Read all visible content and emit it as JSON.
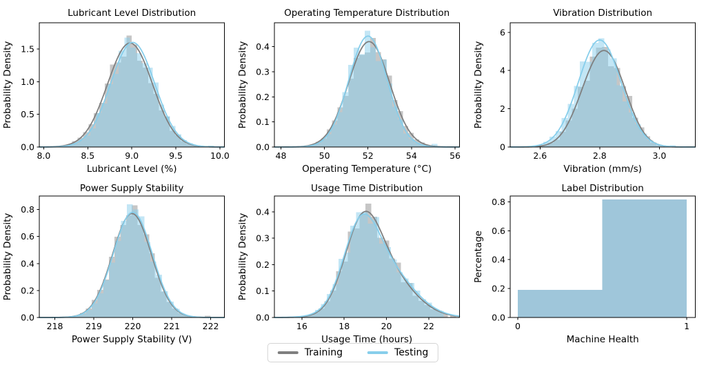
{
  "figure": {
    "background": "#ffffff",
    "legend": {
      "items": [
        {
          "label": "Training",
          "color": "#7f7f7f"
        },
        {
          "label": "Testing",
          "color": "#87ceeb"
        }
      ]
    }
  },
  "colors": {
    "training_line": "#7f7f7f",
    "testing_line": "#87ceeb",
    "training_fill": "rgba(128,128,128,0.45)",
    "testing_fill": "rgba(135,206,235,0.5)",
    "label_bar_fill": "#9fc6da",
    "spine": "#000000",
    "tick": "#000000",
    "text": "#000000"
  },
  "chart_data": [
    {
      "id": "lubricant-level",
      "type": "histogram-kde",
      "title": "Lubricant Level Distribution",
      "xlabel": "Lubricant Level (%)",
      "ylabel": "Probability Density",
      "xlim": [
        7.95,
        10.05
      ],
      "ylim": [
        0,
        1.9
      ],
      "xticks": [
        {
          "v": 8.0,
          "label": "8.0"
        },
        {
          "v": 8.5,
          "label": "8.5"
        },
        {
          "v": 9.0,
          "label": "9.0"
        },
        {
          "v": 9.5,
          "label": "9.5"
        },
        {
          "v": 10.0,
          "label": "10.0"
        }
      ],
      "yticks": [
        {
          "v": 0.0,
          "label": "0.0"
        },
        {
          "v": 0.5,
          "label": "0.5"
        },
        {
          "v": 1.0,
          "label": "1.0"
        },
        {
          "v": 1.5,
          "label": "1.5"
        }
      ],
      "legend_on": false,
      "series": [
        {
          "name": "Training",
          "key": "training",
          "kde": {
            "components": [
              {
                "mean": 8.98,
                "sd": 0.255,
                "w": 1
              }
            ],
            "peak": 1.59
          },
          "hist": {
            "range": [
              8.2,
              9.8
            ],
            "bins": 26,
            "seed": 7,
            "jitter": 0.14,
            "extra_bars": []
          }
        },
        {
          "name": "Testing",
          "key": "testing",
          "kde": {
            "components": [
              {
                "mean": 9.01,
                "sd": 0.25,
                "w": 1
              }
            ],
            "peak": 1.6
          },
          "hist": {
            "range": [
              8.27,
              9.82
            ],
            "bins": 24,
            "seed": 17,
            "jitter": 0.13,
            "extra_bars": [
              {
                "x": 9.9,
                "w": 0.065,
                "h": 0.02
              }
            ]
          }
        }
      ]
    },
    {
      "id": "operating-temperature",
      "type": "histogram-kde",
      "title": "Operating Temperature Distribution",
      "xlabel": "Operating Temperature (°C)",
      "ylabel": "Probability Density",
      "xlim": [
        47.7,
        56.2
      ],
      "ylim": [
        0,
        0.495
      ],
      "xticks": [
        {
          "v": 48,
          "label": "48"
        },
        {
          "v": 50,
          "label": "50"
        },
        {
          "v": 52,
          "label": "52"
        },
        {
          "v": 54,
          "label": "54"
        },
        {
          "v": 56,
          "label": "56"
        }
      ],
      "yticks": [
        {
          "v": 0.0,
          "label": "0.0"
        },
        {
          "v": 0.1,
          "label": "0.1"
        },
        {
          "v": 0.2,
          "label": "0.2"
        },
        {
          "v": 0.3,
          "label": "0.3"
        },
        {
          "v": 0.4,
          "label": "0.4"
        }
      ],
      "legend_on": false,
      "series": [
        {
          "name": "Training",
          "key": "training",
          "kde": {
            "components": [
              {
                "mean": 52.05,
                "sd": 0.95,
                "w": 1
              }
            ],
            "peak": 0.42
          },
          "hist": {
            "range": [
              49.1,
              55.1
            ],
            "bins": 24,
            "seed": 3,
            "jitter": 0.12,
            "extra_bars": []
          }
        },
        {
          "name": "Testing",
          "key": "testing",
          "kde": {
            "components": [
              {
                "mean": 52.0,
                "sd": 0.88,
                "w": 1
              }
            ],
            "peak": 0.442
          },
          "hist": {
            "range": [
              49.3,
              54.9
            ],
            "bins": 22,
            "seed": 23,
            "jitter": 0.12,
            "extra_bars": [
              {
                "x": 55.05,
                "w": 0.27,
                "h": 0.012
              }
            ]
          }
        }
      ]
    },
    {
      "id": "vibration",
      "type": "histogram-kde",
      "title": "Vibration Distribution",
      "xlabel": "Vibration (mm/s)",
      "ylabel": "Probability Density",
      "xlim": [
        2.5,
        3.12
      ],
      "ylim": [
        0,
        6.5
      ],
      "xticks": [
        {
          "v": 2.6,
          "label": "2.6"
        },
        {
          "v": 2.8,
          "label": "2.8"
        },
        {
          "v": 3.0,
          "label": "3.0"
        }
      ],
      "yticks": [
        {
          "v": 0,
          "label": "0"
        },
        {
          "v": 2,
          "label": "2"
        },
        {
          "v": 4,
          "label": "4"
        },
        {
          "v": 6,
          "label": "6"
        }
      ],
      "legend_on": false,
      "series": [
        {
          "name": "Training",
          "key": "training",
          "kde": {
            "components": [
              {
                "mean": 2.782,
                "sd": 0.063,
                "w": 0.52
              },
              {
                "mean": 2.846,
                "sd": 0.06,
                "w": 0.48
              }
            ],
            "peak": 5.05
          },
          "hist": {
            "range": [
              2.565,
              3.03
            ],
            "bins": 23,
            "seed": 5,
            "jitter": 0.12,
            "extra_bars": []
          }
        },
        {
          "name": "Testing",
          "key": "testing",
          "kde": {
            "components": [
              {
                "mean": 2.8,
                "sd": 0.0715,
                "w": 1
              }
            ],
            "peak": 5.6
          },
          "hist": {
            "range": [
              2.55,
              3.02
            ],
            "bins": 23,
            "seed": 19,
            "jitter": 0.13,
            "extra_bars": [
              {
                "x": 3.045,
                "w": 0.02,
                "h": 0.09
              }
            ]
          }
        }
      ]
    },
    {
      "id": "power-supply",
      "type": "histogram-kde",
      "title": "Power Supply Stability",
      "xlabel": "Power Supply Stability (V)",
      "ylabel": "Probability Density",
      "xlim": [
        217.6,
        222.35
      ],
      "ylim": [
        0,
        0.9
      ],
      "xticks": [
        {
          "v": 218,
          "label": "218"
        },
        {
          "v": 219,
          "label": "219"
        },
        {
          "v": 220,
          "label": "220"
        },
        {
          "v": 221,
          "label": "221"
        },
        {
          "v": 222,
          "label": "222"
        }
      ],
      "yticks": [
        {
          "v": 0.0,
          "label": "0.0"
        },
        {
          "v": 0.2,
          "label": "0.2"
        },
        {
          "v": 0.4,
          "label": "0.4"
        },
        {
          "v": 0.6,
          "label": "0.6"
        },
        {
          "v": 0.8,
          "label": "0.8"
        }
      ],
      "legend_on": false,
      "series": [
        {
          "name": "Training",
          "key": "training",
          "kde": {
            "components": [
              {
                "mean": 219.98,
                "sd": 0.5,
                "w": 1
              }
            ],
            "peak": 0.77
          },
          "hist": {
            "range": [
              218.35,
              221.75
            ],
            "bins": 23,
            "seed": 11,
            "jitter": 0.13,
            "extra_bars": [
              {
                "x": 221.92,
                "w": 0.15,
                "h": 0.012
              }
            ]
          }
        },
        {
          "name": "Testing",
          "key": "testing",
          "kde": {
            "components": [
              {
                "mean": 220.0,
                "sd": 0.5,
                "w": 1
              }
            ],
            "peak": 0.78
          },
          "hist": {
            "range": [
              218.5,
              221.65
            ],
            "bins": 21,
            "seed": 13,
            "jitter": 0.12,
            "extra_bars": []
          }
        }
      ]
    },
    {
      "id": "usage-time",
      "type": "histogram-kde",
      "title": "Usage Time Distribution",
      "xlabel": "Usage Time (hours)",
      "ylabel": "Probability Density",
      "xlim": [
        14.7,
        23.45
      ],
      "ylim": [
        0,
        0.46
      ],
      "xticks": [
        {
          "v": 16,
          "label": "16"
        },
        {
          "v": 18,
          "label": "18"
        },
        {
          "v": 20,
          "label": "20"
        },
        {
          "v": 22,
          "label": "22"
        }
      ],
      "yticks": [
        {
          "v": 0.0,
          "label": "0.0"
        },
        {
          "v": 0.1,
          "label": "0.1"
        },
        {
          "v": 0.2,
          "label": "0.2"
        },
        {
          "v": 0.3,
          "label": "0.3"
        },
        {
          "v": 0.4,
          "label": "0.4"
        }
      ],
      "legend_on": true,
      "series": [
        {
          "name": "Training",
          "key": "training",
          "kde": {
            "components": [
              {
                "mean": 18.85,
                "sd": 0.85,
                "w": 0.62
              },
              {
                "mean": 19.9,
                "sd": 1.3,
                "w": 0.38
              }
            ],
            "peak": 0.402
          },
          "hist": {
            "range": [
              15.4,
              22.9
            ],
            "bins": 27,
            "seed": 2,
            "jitter": 0.12,
            "extra_bars": [
              {
                "x": 23.15,
                "w": 0.28,
                "h": 0.008
              }
            ]
          }
        },
        {
          "name": "Testing",
          "key": "testing",
          "kde": {
            "components": [
              {
                "mean": 18.75,
                "sd": 0.8,
                "w": 0.55
              },
              {
                "mean": 19.8,
                "sd": 1.35,
                "w": 0.45
              }
            ],
            "peak": 0.392
          },
          "hist": {
            "range": [
              15.8,
              22.7
            ],
            "bins": 25,
            "seed": 9,
            "jitter": 0.13,
            "extra_bars": []
          }
        }
      ]
    },
    {
      "id": "label-distribution",
      "type": "bar",
      "title": "Label Distribution",
      "xlabel": "Machine Health",
      "ylabel": "Percentage",
      "xlim": [
        -0.045,
        1.05
      ],
      "ylim": [
        0,
        0.84
      ],
      "xticks": [
        {
          "v": 0,
          "label": "0"
        },
        {
          "v": 1,
          "label": "1"
        }
      ],
      "yticks": [
        {
          "v": 0.0,
          "label": "0.0"
        },
        {
          "v": 0.2,
          "label": "0.2"
        },
        {
          "v": 0.4,
          "label": "0.4"
        },
        {
          "v": 0.6,
          "label": "0.6"
        },
        {
          "v": 0.8,
          "label": "0.8"
        }
      ],
      "bars": [
        {
          "from": 0.0,
          "to": 0.5,
          "height": 0.19,
          "category": "0"
        },
        {
          "from": 0.5,
          "to": 1.0,
          "height": 0.815,
          "category": "1"
        }
      ]
    }
  ]
}
